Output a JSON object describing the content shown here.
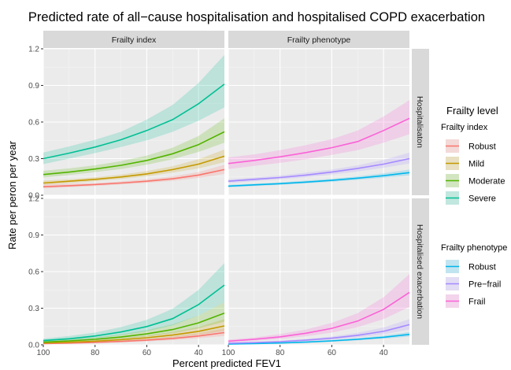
{
  "chart_data": {
    "type": "line",
    "title": "Predicted rate of all−cause hospitalisation and hospitalised COPD exacerbation",
    "xlabel": "Percent predicted FEV1",
    "ylabel": "Rate per peron per year",
    "xlim": [
      100,
      30
    ],
    "ylim": [
      0,
      1.2
    ],
    "x_ticks": [
      100,
      80,
      60,
      40
    ],
    "y_ticks": [
      0.0,
      0.3,
      0.6,
      0.9,
      1.2
    ],
    "y_tick_labels": [
      "0.0",
      "0.3",
      "0.6",
      "0.9",
      "1.2"
    ],
    "grid": true,
    "columns": [
      "Frailty index",
      "Frailty phenotype"
    ],
    "rows": [
      "Hospitalisaton",
      "Hospitalised exacerbation"
    ],
    "x": [
      100,
      90,
      80,
      70,
      60,
      50,
      40,
      30
    ],
    "legend": {
      "title": "Frailty level",
      "position": "right",
      "groups": [
        {
          "title": "Frailty index",
          "items": [
            {
              "label": "Robust",
              "color": "#f8766d"
            },
            {
              "label": "Mild",
              "color": "#c49a00"
            },
            {
              "label": "Moderate",
              "color": "#53b400"
            },
            {
              "label": "Severe",
              "color": "#00c094"
            }
          ]
        },
        {
          "title": "Frailty phenotype",
          "items": [
            {
              "label": "Robust",
              "color": "#00b6eb"
            },
            {
              "label": "Pre−frail",
              "color": "#a58aff"
            },
            {
              "label": "Frail",
              "color": "#fb61d7"
            }
          ]
        }
      ]
    },
    "panels": [
      {
        "row": 0,
        "col": 0,
        "series": [
          {
            "name": "Robust",
            "color": "#f8766d",
            "values": [
              0.07,
              0.078,
              0.088,
              0.1,
              0.115,
              0.135,
              0.165,
              0.21
            ],
            "lower": [
              0.055,
              0.065,
              0.076,
              0.088,
              0.102,
              0.118,
              0.142,
              0.175
            ],
            "upper": [
              0.09,
              0.095,
              0.1,
              0.113,
              0.13,
              0.155,
              0.19,
              0.25
            ]
          },
          {
            "name": "Mild",
            "color": "#c49a00",
            "values": [
              0.1,
              0.115,
              0.13,
              0.15,
              0.175,
              0.21,
              0.255,
              0.32
            ],
            "lower": [
              0.085,
              0.1,
              0.115,
              0.133,
              0.155,
              0.185,
              0.22,
              0.27
            ],
            "upper": [
              0.12,
              0.13,
              0.148,
              0.17,
              0.198,
              0.238,
              0.295,
              0.375
            ]
          },
          {
            "name": "Moderate",
            "color": "#53b400",
            "values": [
              0.17,
              0.19,
              0.215,
              0.245,
              0.285,
              0.34,
              0.415,
              0.52
            ],
            "lower": [
              0.145,
              0.165,
              0.19,
              0.215,
              0.25,
              0.295,
              0.355,
              0.43
            ],
            "upper": [
              0.2,
              0.22,
              0.245,
              0.28,
              0.325,
              0.39,
              0.485,
              0.63
            ]
          },
          {
            "name": "Severe",
            "color": "#00c094",
            "values": [
              0.3,
              0.345,
              0.395,
              0.455,
              0.53,
              0.62,
              0.75,
              0.91
            ],
            "lower": [
              0.255,
              0.3,
              0.345,
              0.395,
              0.45,
              0.52,
              0.61,
              0.72
            ],
            "upper": [
              0.35,
              0.4,
              0.455,
              0.52,
              0.62,
              0.74,
              0.92,
              1.15
            ]
          }
        ]
      },
      {
        "row": 0,
        "col": 1,
        "series": [
          {
            "name": "Robust",
            "color": "#00b6eb",
            "values": [
              0.075,
              0.085,
              0.095,
              0.108,
              0.122,
              0.14,
              0.16,
              0.185
            ],
            "lower": [
              0.065,
              0.075,
              0.085,
              0.097,
              0.11,
              0.126,
              0.143,
              0.162
            ],
            "upper": [
              0.085,
              0.095,
              0.106,
              0.12,
              0.135,
              0.155,
              0.18,
              0.21
            ]
          },
          {
            "name": "Pre−frail",
            "color": "#a58aff",
            "values": [
              0.115,
              0.13,
              0.145,
              0.165,
              0.19,
              0.22,
              0.255,
              0.3
            ],
            "lower": [
              0.1,
              0.115,
              0.13,
              0.148,
              0.17,
              0.195,
              0.225,
              0.26
            ],
            "upper": [
              0.13,
              0.145,
              0.162,
              0.185,
              0.21,
              0.245,
              0.29,
              0.35
            ]
          },
          {
            "name": "Frail",
            "color": "#fb61d7",
            "values": [
              0.26,
              0.285,
              0.315,
              0.35,
              0.39,
              0.44,
              0.53,
              0.63
            ],
            "lower": [
              0.215,
              0.24,
              0.265,
              0.295,
              0.33,
              0.37,
              0.43,
              0.5
            ],
            "upper": [
              0.31,
              0.335,
              0.37,
              0.41,
              0.46,
              0.53,
              0.645,
              0.78
            ]
          }
        ]
      },
      {
        "row": 1,
        "col": 0,
        "series": [
          {
            "name": "Robust",
            "color": "#f8766d",
            "values": [
              0.01,
              0.014,
              0.02,
              0.028,
              0.038,
              0.052,
              0.072,
              0.1
            ],
            "lower": [
              0.005,
              0.009,
              0.014,
              0.02,
              0.028,
              0.039,
              0.054,
              0.072
            ],
            "upper": [
              0.016,
              0.02,
              0.026,
              0.036,
              0.05,
              0.068,
              0.095,
              0.135
            ]
          },
          {
            "name": "Mild",
            "color": "#c49a00",
            "values": [
              0.015,
              0.021,
              0.03,
              0.042,
              0.058,
              0.08,
              0.11,
              0.155
            ],
            "lower": [
              0.009,
              0.014,
              0.021,
              0.03,
              0.043,
              0.06,
              0.082,
              0.112
            ],
            "upper": [
              0.022,
              0.029,
              0.04,
              0.056,
              0.076,
              0.105,
              0.145,
              0.21
            ]
          },
          {
            "name": "Moderate",
            "color": "#53b400",
            "values": [
              0.022,
              0.032,
              0.045,
              0.064,
              0.09,
              0.125,
              0.18,
              0.26
            ],
            "lower": [
              0.014,
              0.022,
              0.033,
              0.048,
              0.068,
              0.095,
              0.135,
              0.19
            ],
            "upper": [
              0.032,
              0.045,
              0.062,
              0.085,
              0.12,
              0.168,
              0.24,
              0.35
            ]
          },
          {
            "name": "Severe",
            "color": "#00c094",
            "values": [
              0.035,
              0.05,
              0.072,
              0.105,
              0.15,
              0.215,
              0.33,
              0.49
            ],
            "lower": [
              0.022,
              0.034,
              0.052,
              0.078,
              0.11,
              0.16,
              0.24,
              0.35
            ],
            "upper": [
              0.05,
              0.072,
              0.1,
              0.145,
              0.205,
              0.295,
              0.45,
              0.67
            ]
          }
        ]
      },
      {
        "row": 1,
        "col": 1,
        "series": [
          {
            "name": "Robust",
            "color": "#00b6eb",
            "values": [
              0.006,
              0.01,
              0.015,
              0.022,
              0.032,
              0.045,
              0.062,
              0.085
            ],
            "lower": [
              0.004,
              0.007,
              0.011,
              0.017,
              0.025,
              0.036,
              0.05,
              0.068
            ],
            "upper": [
              0.008,
              0.013,
              0.019,
              0.028,
              0.04,
              0.055,
              0.076,
              0.105
            ]
          },
          {
            "name": "Pre−frail",
            "color": "#a58aff",
            "values": [
              0.012,
              0.018,
              0.026,
              0.038,
              0.054,
              0.078,
              0.11,
              0.165
            ],
            "lower": [
              0.008,
              0.013,
              0.02,
              0.029,
              0.042,
              0.06,
              0.085,
              0.125
            ],
            "upper": [
              0.017,
              0.024,
              0.034,
              0.048,
              0.068,
              0.098,
              0.142,
              0.21
            ]
          },
          {
            "name": "Frail",
            "color": "#fb61d7",
            "values": [
              0.03,
              0.045,
              0.065,
              0.095,
              0.135,
              0.195,
              0.29,
              0.43
            ],
            "lower": [
              0.02,
              0.032,
              0.048,
              0.07,
              0.1,
              0.145,
              0.21,
              0.31
            ],
            "upper": [
              0.042,
              0.06,
              0.088,
              0.125,
              0.18,
              0.26,
              0.39,
              0.58
            ]
          }
        ]
      }
    ]
  }
}
